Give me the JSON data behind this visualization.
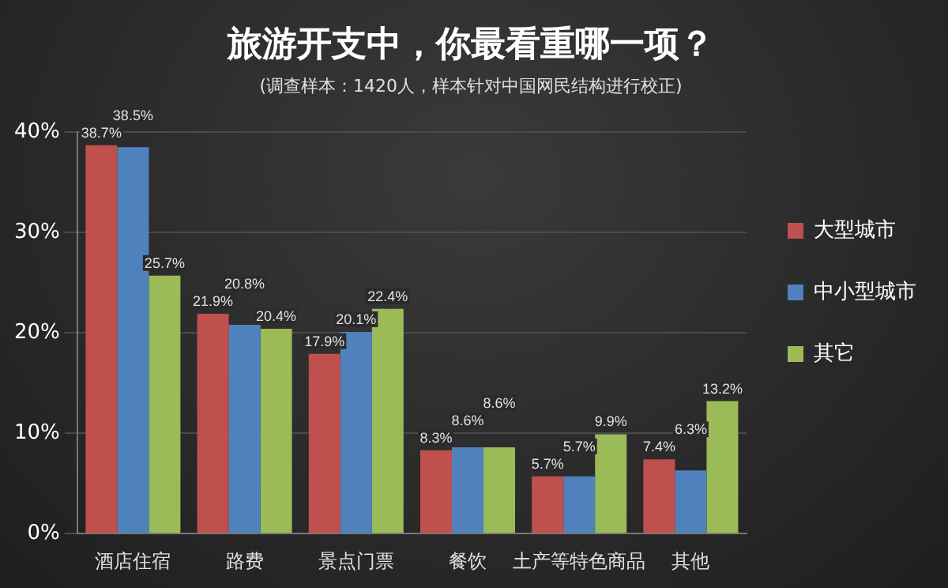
{
  "chart_data": {
    "type": "bar",
    "title": "旅游开支中，你最看重哪一项？",
    "subtitle": "(调查样本：1420人，样本针对中国网民结构进行校正)",
    "categories": [
      "酒店住宿",
      "路费",
      "景点门票",
      "餐饮",
      "土产等特色商品",
      "其他"
    ],
    "series": [
      {
        "name": "大型城市",
        "color": "#c0504d",
        "values": [
          38.7,
          21.9,
          17.9,
          8.3,
          5.7,
          7.4
        ],
        "value_labels": [
          "38.7%",
          "21.9%",
          "17.9%",
          "8.3%",
          "5.7%",
          "7.4%"
        ]
      },
      {
        "name": "中小型城市",
        "color": "#4f81bd",
        "values": [
          38.5,
          20.8,
          20.1,
          8.6,
          5.7,
          6.3
        ],
        "value_labels": [
          "38.5%",
          "20.8%",
          "20.1%",
          "8.6%",
          "5.7%",
          "6.3%"
        ]
      },
      {
        "name": "其它",
        "color": "#9bbb59",
        "values": [
          25.7,
          20.4,
          22.4,
          8.6,
          9.9,
          13.2
        ],
        "value_labels": [
          "25.7%",
          "20.4%",
          "22.4%",
          "8.6%",
          "9.9%",
          "13.2%"
        ]
      }
    ],
    "ylim": [
      0,
      40
    ],
    "yticks": [
      {
        "value": 0,
        "label": "0%"
      },
      {
        "value": 10,
        "label": "10%"
      },
      {
        "value": 20,
        "label": "20%"
      },
      {
        "value": 30,
        "label": "30%"
      },
      {
        "value": 40,
        "label": "40%"
      }
    ],
    "grid": "y",
    "legend": "right"
  }
}
